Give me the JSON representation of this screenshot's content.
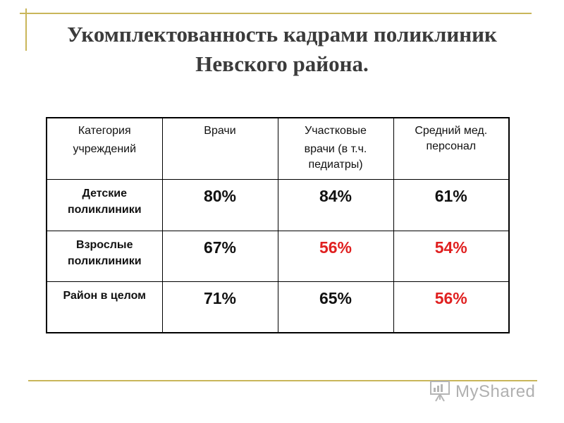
{
  "slide": {
    "title_line1": "Укомплектованность кадрами поликлиник",
    "title_line2": "Невского района."
  },
  "table": {
    "headers": [
      {
        "line1": "Категория",
        "line2": "учреждений",
        "line3": ""
      },
      {
        "line1": "Врачи",
        "line2": "",
        "line3": ""
      },
      {
        "line1": "Участковые",
        "line2": "врачи (в т.ч.",
        "line3": "педиатры)"
      },
      {
        "line1": "Средний мед.",
        "line2": "персонал",
        "line3": ""
      }
    ],
    "rows": [
      {
        "label_line1": "Детские",
        "label_line2": "поликлиники",
        "values": [
          "80%",
          "84%",
          "61%"
        ]
      },
      {
        "label_line1": "Взрослые",
        "label_line2": "поликлиники",
        "values": [
          "67%",
          "56%",
          "54%"
        ]
      },
      {
        "label_line1": "Район в целом",
        "label_line2": "",
        "values": [
          "71%",
          "65%",
          "56%"
        ]
      }
    ],
    "colors": {
      "normal": "#111111",
      "highlight": "#e02020"
    }
  },
  "logo": {
    "text": "MyShared",
    "icon": "presentation-board-icon"
  }
}
